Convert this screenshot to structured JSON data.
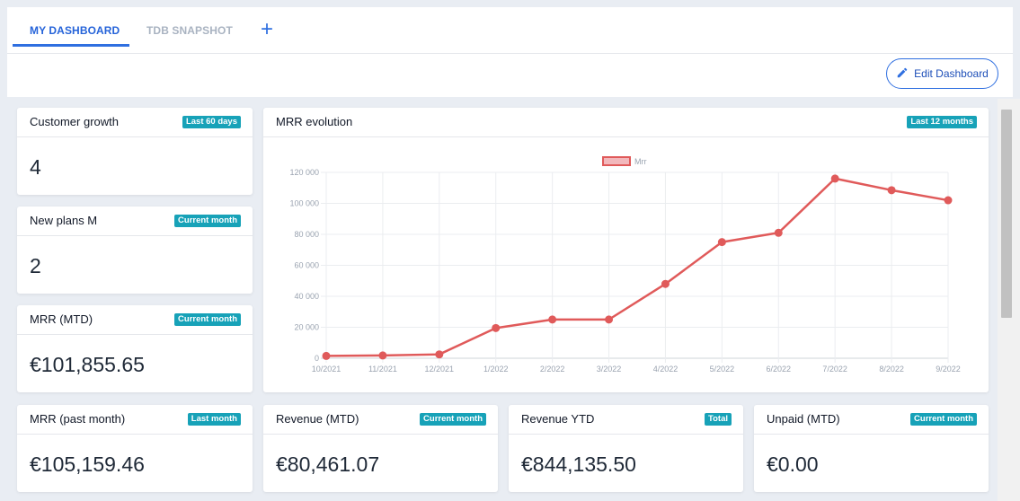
{
  "tabs": [
    {
      "label": "MY DASHBOARD",
      "active": true
    },
    {
      "label": "TDB SNAPSHOT",
      "active": false
    }
  ],
  "add_tab_symbol": "+",
  "edit_button": {
    "label": "Edit Dashboard",
    "icon": "pencil-icon"
  },
  "cards": {
    "customer_growth": {
      "title": "Customer growth",
      "badge": "Last 60 days",
      "value": "4"
    },
    "new_plans": {
      "title": "New plans M",
      "badge": "Current month",
      "value": "2"
    },
    "mrr_mtd": {
      "title": "MRR (MTD)",
      "badge": "Current month",
      "value": "€101,855.65"
    },
    "mrr_past": {
      "title": "MRR (past month)",
      "badge": "Last month",
      "value": "€105,159.46"
    },
    "revenue_mtd": {
      "title": "Revenue (MTD)",
      "badge": "Current month",
      "value": "€80,461.07"
    },
    "revenue_ytd": {
      "title": "Revenue YTD",
      "badge": "Total",
      "value": "€844,135.50"
    },
    "unpaid_mtd": {
      "title": "Unpaid (MTD)",
      "badge": "Current month",
      "value": "€0.00"
    },
    "mrr_evolution": {
      "title": "MRR evolution",
      "badge": "Last 12 months"
    }
  },
  "colors": {
    "accent": "#2f6fe0",
    "badge": "#17a2b8",
    "series": "#e05a5a"
  },
  "chart_data": {
    "type": "line",
    "x": [
      "10/2021",
      "11/2021",
      "12/2021",
      "1/2022",
      "2/2022",
      "3/2022",
      "4/2022",
      "5/2022",
      "6/2022",
      "7/2022",
      "8/2022",
      "9/2022"
    ],
    "series": [
      {
        "name": "Mrr",
        "values": [
          1500,
          1800,
          2500,
          19500,
          25000,
          25000,
          48000,
          75000,
          81000,
          116000,
          108500,
          102000
        ]
      }
    ],
    "yticks": [
      "0",
      "20 000",
      "40 000",
      "60 000",
      "80 000",
      "100 000",
      "120 000"
    ],
    "ylim": [
      0,
      120000
    ],
    "grid": true,
    "legend": "top-center"
  }
}
